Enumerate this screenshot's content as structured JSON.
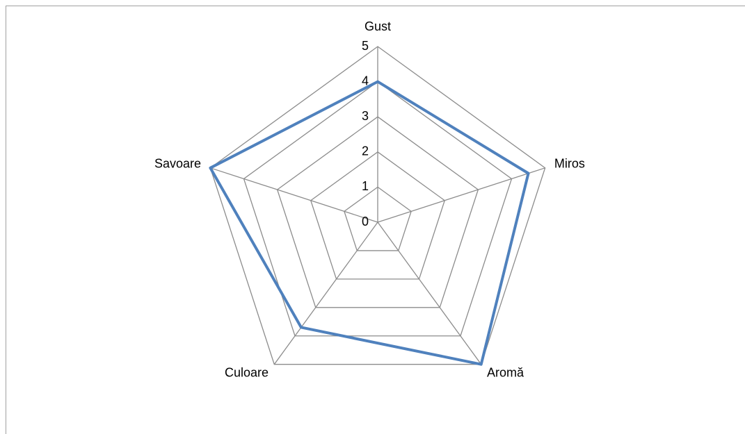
{
  "chart_data": {
    "type": "radar",
    "categories": [
      "Gust",
      "Miros",
      "Aromă",
      "Culoare",
      "Savoare"
    ],
    "series": [
      {
        "color": "#4f81bd",
        "values": [
          4,
          4.5,
          5,
          3.7,
          5
        ]
      }
    ],
    "rlim": [
      0,
      5
    ],
    "rticks": [
      0,
      1,
      2,
      3,
      4,
      5
    ],
    "grid": true
  }
}
